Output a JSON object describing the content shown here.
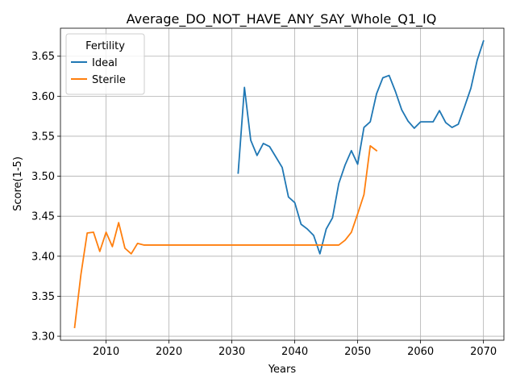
{
  "chart_data": {
    "type": "line",
    "title": "Average_DO_NOT_HAVE_ANY_SAY_Whole_Q1_IQ",
    "xlabel": "Years",
    "ylabel": "Score(1-5)",
    "xlim": [
      2002.75,
      2073.25
    ],
    "ylim": [
      3.295,
      3.685
    ],
    "xticks": [
      2010,
      2020,
      2030,
      2040,
      2050,
      2060,
      2070
    ],
    "yticks": [
      3.3,
      3.35,
      3.4,
      3.45,
      3.5,
      3.55,
      3.6,
      3.65
    ],
    "grid": true,
    "legend": {
      "title": "Fertility",
      "position": "top-left"
    },
    "series": [
      {
        "name": "Ideal",
        "color": "#1f77b4",
        "x": [
          2031,
          2032,
          2033,
          2034,
          2035,
          2036,
          2037,
          2038,
          2039,
          2040,
          2041,
          2042,
          2043,
          2044,
          2045,
          2046,
          2047,
          2048,
          2049,
          2050,
          2051,
          2052,
          2053,
          2054,
          2055,
          2056,
          2057,
          2058,
          2059,
          2060,
          2061,
          2062,
          2063,
          2064,
          2065,
          2066,
          2067,
          2068,
          2069,
          2070
        ],
        "y": [
          3.504,
          3.611,
          3.545,
          3.526,
          3.541,
          3.537,
          3.524,
          3.511,
          3.474,
          3.467,
          3.44,
          3.434,
          3.426,
          3.403,
          3.434,
          3.448,
          3.491,
          3.514,
          3.532,
          3.515,
          3.561,
          3.568,
          3.603,
          3.623,
          3.626,
          3.606,
          3.583,
          3.569,
          3.56,
          3.568,
          3.568,
          3.568,
          3.582,
          3.567,
          3.561,
          3.565,
          3.587,
          3.61,
          3.645,
          3.669
        ]
      },
      {
        "name": "Sterile",
        "color": "#ff7f0e",
        "x": [
          2005,
          2006,
          2007,
          2008,
          2009,
          2010,
          2011,
          2012,
          2013,
          2014,
          2015,
          2016,
          2017,
          2018,
          2019,
          2020,
          2021,
          2022,
          2023,
          2024,
          2025,
          2026,
          2027,
          2028,
          2029,
          2030,
          2031,
          2032,
          2033,
          2034,
          2035,
          2036,
          2037,
          2038,
          2039,
          2040,
          2041,
          2042,
          2043,
          2044,
          2045,
          2046,
          2047,
          2048,
          2049,
          2050,
          2051,
          2052,
          2053
        ],
        "y": [
          3.311,
          3.377,
          3.429,
          3.43,
          3.406,
          3.43,
          3.412,
          3.442,
          3.41,
          3.403,
          3.416,
          3.414,
          3.414,
          3.414,
          3.414,
          3.414,
          3.414,
          3.414,
          3.414,
          3.414,
          3.414,
          3.414,
          3.414,
          3.414,
          3.414,
          3.414,
          3.414,
          3.414,
          3.414,
          3.414,
          3.414,
          3.414,
          3.414,
          3.414,
          3.414,
          3.414,
          3.414,
          3.414,
          3.414,
          3.414,
          3.414,
          3.414,
          3.414,
          3.42,
          3.43,
          3.453,
          3.477,
          3.538,
          3.532
        ]
      }
    ]
  }
}
